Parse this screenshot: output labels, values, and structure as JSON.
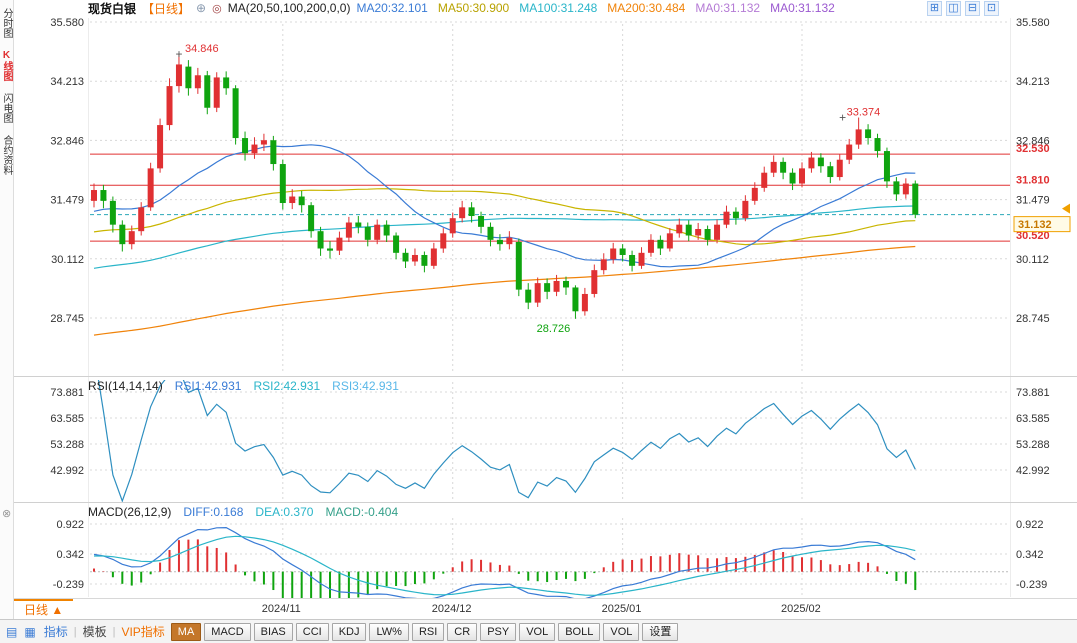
{
  "sidebar": {
    "items": [
      {
        "label": "分时图",
        "active": false
      },
      {
        "label": "K线图",
        "active": true
      },
      {
        "label": "闪电图",
        "active": false
      },
      {
        "label": "合约资料",
        "active": false
      }
    ],
    "active_color": "#e03032"
  },
  "header": {
    "symbol": "现货白银",
    "period_tag": "【日线】",
    "add_icon": "⊕",
    "eye_icon": "◎",
    "ma_settings_label": "MA(20,50,100,200,0,0)",
    "ma_values": [
      {
        "label": "MA20:32.101",
        "color": "#3a7bd5"
      },
      {
        "label": "MA50:30.900",
        "color": "#b8a200"
      },
      {
        "label": "MA100:31.248",
        "color": "#2ab5c9"
      },
      {
        "label": "MA200:30.484",
        "color": "#f0830a"
      },
      {
        "label": "MA0:31.132",
        "color": "#b57bd5"
      },
      {
        "label": "MA0:31.132",
        "color": "#9b59d0"
      }
    ],
    "layout_icons": [
      "⊞",
      "◫",
      "⊟",
      "⊡"
    ]
  },
  "chart_data": {
    "type": "candlestick",
    "symbol": "现货白银",
    "period": "日线",
    "up_color": "#e03032",
    "down_color": "#0fa40f",
    "grid_color": "#d8d8d8",
    "dashed_price_color": "#2aa7b8",
    "level_color": "#e03032",
    "y_ticks_main": [
      "35.580",
      "34.213",
      "32.846",
      "31.479",
      "30.112",
      "28.745"
    ],
    "x_ticks": [
      {
        "label": "2024/11",
        "index": 20
      },
      {
        "label": "2024/12",
        "index": 38
      },
      {
        "label": "2025/01",
        "index": 56
      },
      {
        "label": "2025/02",
        "index": 75
      }
    ],
    "candles": [
      [
        31.45,
        31.85,
        31.3,
        31.7
      ],
      [
        31.7,
        31.82,
        31.28,
        31.45
      ],
      [
        31.45,
        31.55,
        30.72,
        30.9
      ],
      [
        30.9,
        31.0,
        30.28,
        30.45
      ],
      [
        30.45,
        30.88,
        30.33,
        30.75
      ],
      [
        30.75,
        31.42,
        30.65,
        31.3
      ],
      [
        31.3,
        32.33,
        31.22,
        32.2
      ],
      [
        32.2,
        33.35,
        32.1,
        33.2
      ],
      [
        33.2,
        34.28,
        33.08,
        34.1
      ],
      [
        34.1,
        34.846,
        33.95,
        34.6
      ],
      [
        34.55,
        34.7,
        33.88,
        34.05
      ],
      [
        34.05,
        34.52,
        33.92,
        34.35
      ],
      [
        34.35,
        34.45,
        33.45,
        33.6
      ],
      [
        33.6,
        34.42,
        33.5,
        34.3
      ],
      [
        34.3,
        34.44,
        33.9,
        34.05
      ],
      [
        34.05,
        34.12,
        32.75,
        32.9
      ],
      [
        32.9,
        33.05,
        32.38,
        32.55
      ],
      [
        32.55,
        32.92,
        32.42,
        32.75
      ],
      [
        32.75,
        33.0,
        32.6,
        32.85
      ],
      [
        32.85,
        32.95,
        32.15,
        32.3
      ],
      [
        32.3,
        32.4,
        31.25,
        31.4
      ],
      [
        31.4,
        31.72,
        31.26,
        31.55
      ],
      [
        31.55,
        31.68,
        31.18,
        31.35
      ],
      [
        31.35,
        31.42,
        30.6,
        30.75
      ],
      [
        30.75,
        30.85,
        30.18,
        30.35
      ],
      [
        30.35,
        30.52,
        30.12,
        30.3
      ],
      [
        30.3,
        30.74,
        30.2,
        30.6
      ],
      [
        30.6,
        31.08,
        30.5,
        30.95
      ],
      [
        30.95,
        31.1,
        30.7,
        30.85
      ],
      [
        30.85,
        30.95,
        30.4,
        30.55
      ],
      [
        30.55,
        31.02,
        30.45,
        30.9
      ],
      [
        30.9,
        31.0,
        30.5,
        30.65
      ],
      [
        30.65,
        30.72,
        30.1,
        30.25
      ],
      [
        30.25,
        30.35,
        29.9,
        30.05
      ],
      [
        30.05,
        30.35,
        29.95,
        30.2
      ],
      [
        30.2,
        30.28,
        29.8,
        29.95
      ],
      [
        29.95,
        30.48,
        29.88,
        30.35
      ],
      [
        30.35,
        30.82,
        30.25,
        30.7
      ],
      [
        30.7,
        31.18,
        30.6,
        31.05
      ],
      [
        31.05,
        31.45,
        30.95,
        31.3
      ],
      [
        31.3,
        31.42,
        30.95,
        31.1
      ],
      [
        31.1,
        31.2,
        30.7,
        30.85
      ],
      [
        30.85,
        30.95,
        30.4,
        30.55
      ],
      [
        30.55,
        30.68,
        30.3,
        30.45
      ],
      [
        30.45,
        30.75,
        30.33,
        30.6
      ],
      [
        30.5,
        30.58,
        29.25,
        29.4
      ],
      [
        29.4,
        29.55,
        28.95,
        29.1
      ],
      [
        29.1,
        29.68,
        29.0,
        29.55
      ],
      [
        29.55,
        29.66,
        29.18,
        29.35
      ],
      [
        29.35,
        29.74,
        29.25,
        29.6
      ],
      [
        29.6,
        29.7,
        29.28,
        29.45
      ],
      [
        29.45,
        29.5,
        28.726,
        28.9
      ],
      [
        28.9,
        29.44,
        28.8,
        29.3
      ],
      [
        29.3,
        29.98,
        29.22,
        29.85
      ],
      [
        29.85,
        30.24,
        29.75,
        30.1
      ],
      [
        30.1,
        30.48,
        30.0,
        30.35
      ],
      [
        30.35,
        30.45,
        30.05,
        30.2
      ],
      [
        30.2,
        30.3,
        29.82,
        29.95
      ],
      [
        29.95,
        30.38,
        29.88,
        30.25
      ],
      [
        30.25,
        30.68,
        30.16,
        30.55
      ],
      [
        30.55,
        30.65,
        30.2,
        30.35
      ],
      [
        30.35,
        30.82,
        30.28,
        30.7
      ],
      [
        30.7,
        31.04,
        30.6,
        30.9
      ],
      [
        30.9,
        31.0,
        30.52,
        30.65
      ],
      [
        30.65,
        30.94,
        30.55,
        30.8
      ],
      [
        30.8,
        30.88,
        30.42,
        30.55
      ],
      [
        30.55,
        31.02,
        30.47,
        30.9
      ],
      [
        30.9,
        31.34,
        30.82,
        31.2
      ],
      [
        31.2,
        31.3,
        30.9,
        31.05
      ],
      [
        31.05,
        31.58,
        30.98,
        31.45
      ],
      [
        31.45,
        31.88,
        31.36,
        31.75
      ],
      [
        31.75,
        32.24,
        31.66,
        32.1
      ],
      [
        32.1,
        32.5,
        32.0,
        32.35
      ],
      [
        32.35,
        32.45,
        31.95,
        32.1
      ],
      [
        32.1,
        32.2,
        31.7,
        31.85
      ],
      [
        31.85,
        32.34,
        31.76,
        32.2
      ],
      [
        32.2,
        32.58,
        32.1,
        32.45
      ],
      [
        32.45,
        32.55,
        32.1,
        32.25
      ],
      [
        32.25,
        32.35,
        31.86,
        32.0
      ],
      [
        32.0,
        32.52,
        31.92,
        32.4
      ],
      [
        32.4,
        32.88,
        32.3,
        32.75
      ],
      [
        32.75,
        33.374,
        32.65,
        33.1
      ],
      [
        33.1,
        33.22,
        32.75,
        32.9
      ],
      [
        32.9,
        33.0,
        32.45,
        32.6
      ],
      [
        32.6,
        32.68,
        31.75,
        31.9
      ],
      [
        31.9,
        32.0,
        31.45,
        31.6
      ],
      [
        31.6,
        31.97,
        31.5,
        31.85
      ],
      [
        31.85,
        31.92,
        31.05,
        31.132
      ]
    ],
    "ma_lines": [
      {
        "period": 20,
        "color": "#3a7bd5"
      },
      {
        "period": 50,
        "color": "#c9b500"
      },
      {
        "period": 100,
        "color": "#2ab5c9"
      },
      {
        "period": 200,
        "color": "#f0830a"
      }
    ],
    "levels": [
      {
        "value": 32.53,
        "label": "32.530"
      },
      {
        "value": 31.81,
        "label": "31.810"
      },
      {
        "value": 30.52,
        "label": "30.520"
      }
    ],
    "last_price": {
      "value": 31.132,
      "label": "31.132"
    },
    "annotations": [
      {
        "text": "34.846",
        "index": 9,
        "value": 34.846,
        "color": "#e03032",
        "marker": "+",
        "position": "above"
      },
      {
        "text": "33.374",
        "index": 81,
        "value": 33.374,
        "color": "#e03032",
        "marker": "+",
        "position": "above"
      },
      {
        "text": "28.726",
        "index": 51,
        "value": 28.726,
        "color": "#0fa40f",
        "position": "below"
      }
    ],
    "rsi": {
      "title": "RSI(14,14,14)",
      "period": 14,
      "line_color": "#2e8fc0",
      "values": [
        {
          "label": "RSI1:42.931",
          "color": "#3a7bd5"
        },
        {
          "label": "RSI2:42.931",
          "color": "#2ab5c9"
        },
        {
          "label": "RSI3:42.931",
          "color": "#58b7e8"
        }
      ],
      "y_ticks": [
        "73.881",
        "63.585",
        "53.288",
        "42.992"
      ]
    },
    "macd": {
      "title": "MACD(26,12,9)",
      "fast": 12,
      "slow": 26,
      "signal": 9,
      "diff_color": "#3a7bd5",
      "dea_color": "#2ab5c9",
      "hist_up_color": "#e03032",
      "hist_down_color": "#0fa40f",
      "values": [
        {
          "label": "DIFF:0.168",
          "color": "#3a7bd5"
        },
        {
          "label": "DEA:0.370",
          "color": "#2ab5c9"
        },
        {
          "label": "MACD:-0.404",
          "color": "#35a08a"
        }
      ],
      "y_ticks": [
        "0.922",
        "0.342",
        "-0.239"
      ]
    }
  },
  "bottom": {
    "period_label": "日线",
    "period_arrow": "▲",
    "icons": [
      "▤",
      "▦"
    ],
    "tabs": [
      {
        "label": "指标",
        "color": "#3a7bd5"
      },
      {
        "label": "模板",
        "color": "#444444"
      },
      {
        "label": "VIP指标",
        "color": "#f07000"
      }
    ],
    "buttons": [
      {
        "label": "MA",
        "active": true
      },
      {
        "label": "MACD",
        "active": false
      },
      {
        "label": "BIAS",
        "active": false
      },
      {
        "label": "CCI",
        "active": false
      },
      {
        "label": "KDJ",
        "active": false
      },
      {
        "label": "LW%",
        "active": false
      },
      {
        "label": "RSI",
        "active": false
      },
      {
        "label": "CR",
        "active": false
      },
      {
        "label": "PSY",
        "active": false
      },
      {
        "label": "VOL",
        "active": false
      },
      {
        "label": "BOLL",
        "active": false
      },
      {
        "label": "VOL",
        "active": false
      },
      {
        "label": "设置",
        "active": false
      }
    ],
    "active_button_bg": "#c4772a"
  }
}
